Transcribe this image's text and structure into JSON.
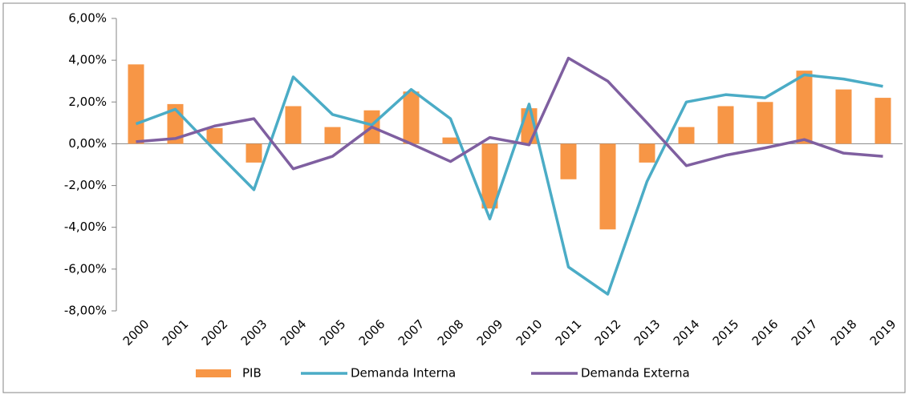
{
  "chart_data": {
    "type": "bar-line",
    "categories": [
      "2000",
      "2001",
      "2002",
      "2003",
      "2004",
      "2005",
      "2006",
      "2007",
      "2008",
      "2009",
      "2010",
      "2011",
      "2012",
      "2013",
      "2014",
      "2015",
      "2016",
      "2017",
      "2018",
      "2019"
    ],
    "series": [
      {
        "name": "PIB",
        "type": "bar",
        "color": "#f79646",
        "values": [
          3.8,
          1.9,
          0.75,
          -0.9,
          1.8,
          0.8,
          1.6,
          2.5,
          0.3,
          -3.1,
          1.7,
          -1.7,
          -4.1,
          -0.9,
          0.8,
          1.8,
          2.0,
          3.5,
          2.6,
          2.2
        ]
      },
      {
        "name": "Demanda Interna",
        "type": "line",
        "color": "#4bacc6",
        "values": [
          0.95,
          1.65,
          -0.3,
          -2.2,
          3.2,
          1.4,
          0.9,
          2.6,
          1.2,
          -3.6,
          1.9,
          -5.9,
          -7.2,
          -1.8,
          2.0,
          2.35,
          2.2,
          3.3,
          3.1,
          2.75
        ]
      },
      {
        "name": "Demanda Externa",
        "type": "line",
        "color": "#7f5fa0",
        "values": [
          0.1,
          0.25,
          0.85,
          1.2,
          -1.2,
          -0.6,
          0.8,
          0.0,
          -0.85,
          0.3,
          -0.05,
          4.1,
          3.0,
          1.0,
          -1.05,
          -0.55,
          -0.2,
          0.2,
          -0.45,
          -0.6
        ]
      }
    ],
    "ylim": [
      -8,
      6
    ],
    "yticks": [
      {
        "value": -8,
        "label": "-8,00%"
      },
      {
        "value": -6,
        "label": "-6,00%"
      },
      {
        "value": -4,
        "label": "-4,00%"
      },
      {
        "value": -2,
        "label": "-2,00%"
      },
      {
        "value": 0,
        "label": "0,00%"
      },
      {
        "value": 2,
        "label": "2,00%"
      },
      {
        "value": 4,
        "label": "4,00%"
      },
      {
        "value": 6,
        "label": "6,00%"
      }
    ],
    "grid": false,
    "legend": "bottom"
  }
}
